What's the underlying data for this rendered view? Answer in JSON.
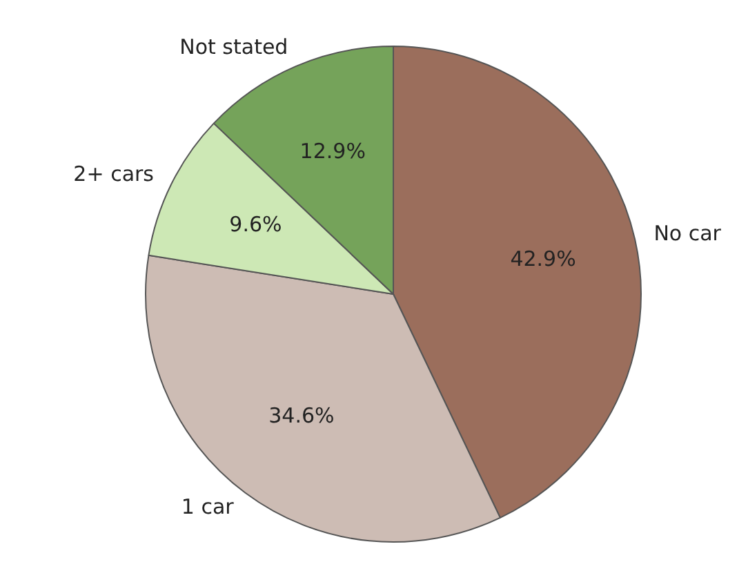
{
  "chart_data": {
    "type": "pie",
    "categories": [
      "No car",
      "1 car",
      "2+ cars",
      "Not stated"
    ],
    "values": [
      42.9,
      34.6,
      9.6,
      12.9
    ],
    "value_labels": [
      "42.9%",
      "34.6%",
      "9.6%",
      "12.9%"
    ],
    "colors": [
      "#9b6e5c",
      "#cdbcb4",
      "#cde8b5",
      "#75a35a"
    ],
    "legend": false
  }
}
